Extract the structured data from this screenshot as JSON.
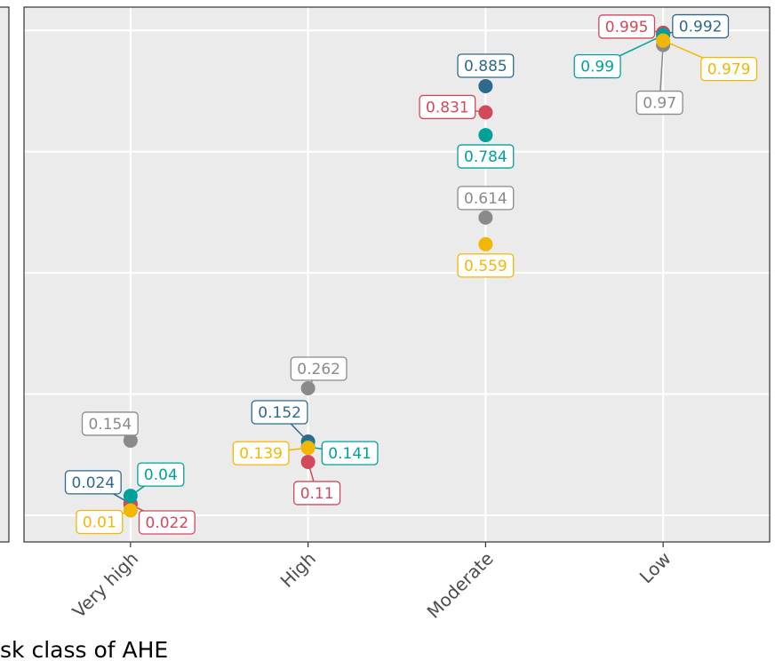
{
  "chart_data": {
    "type": "dot",
    "x_label": "sk class of AHE",
    "categories": [
      "Very high",
      "High",
      "Moderate",
      "Low"
    ],
    "ylim": [
      -0.055,
      1.048
    ],
    "yticks": [
      0,
      0.25,
      0.5,
      0.75,
      1
    ],
    "grid": true,
    "series": [
      {
        "color": "#2e6a8e",
        "values": [
          0.024,
          0.152,
          0.885,
          0.992
        ]
      },
      {
        "color": "#d1495b",
        "values": [
          0.022,
          0.11,
          0.831,
          0.995
        ]
      },
      {
        "color": "#00a19a",
        "values": [
          0.04,
          0.141,
          0.784,
          0.99
        ]
      },
      {
        "color": "#8a8a8a",
        "values": [
          0.154,
          0.262,
          0.614,
          0.97
        ]
      },
      {
        "color": "#f2b705",
        "values": [
          0.01,
          0.139,
          0.559,
          0.979
        ]
      }
    ]
  }
}
